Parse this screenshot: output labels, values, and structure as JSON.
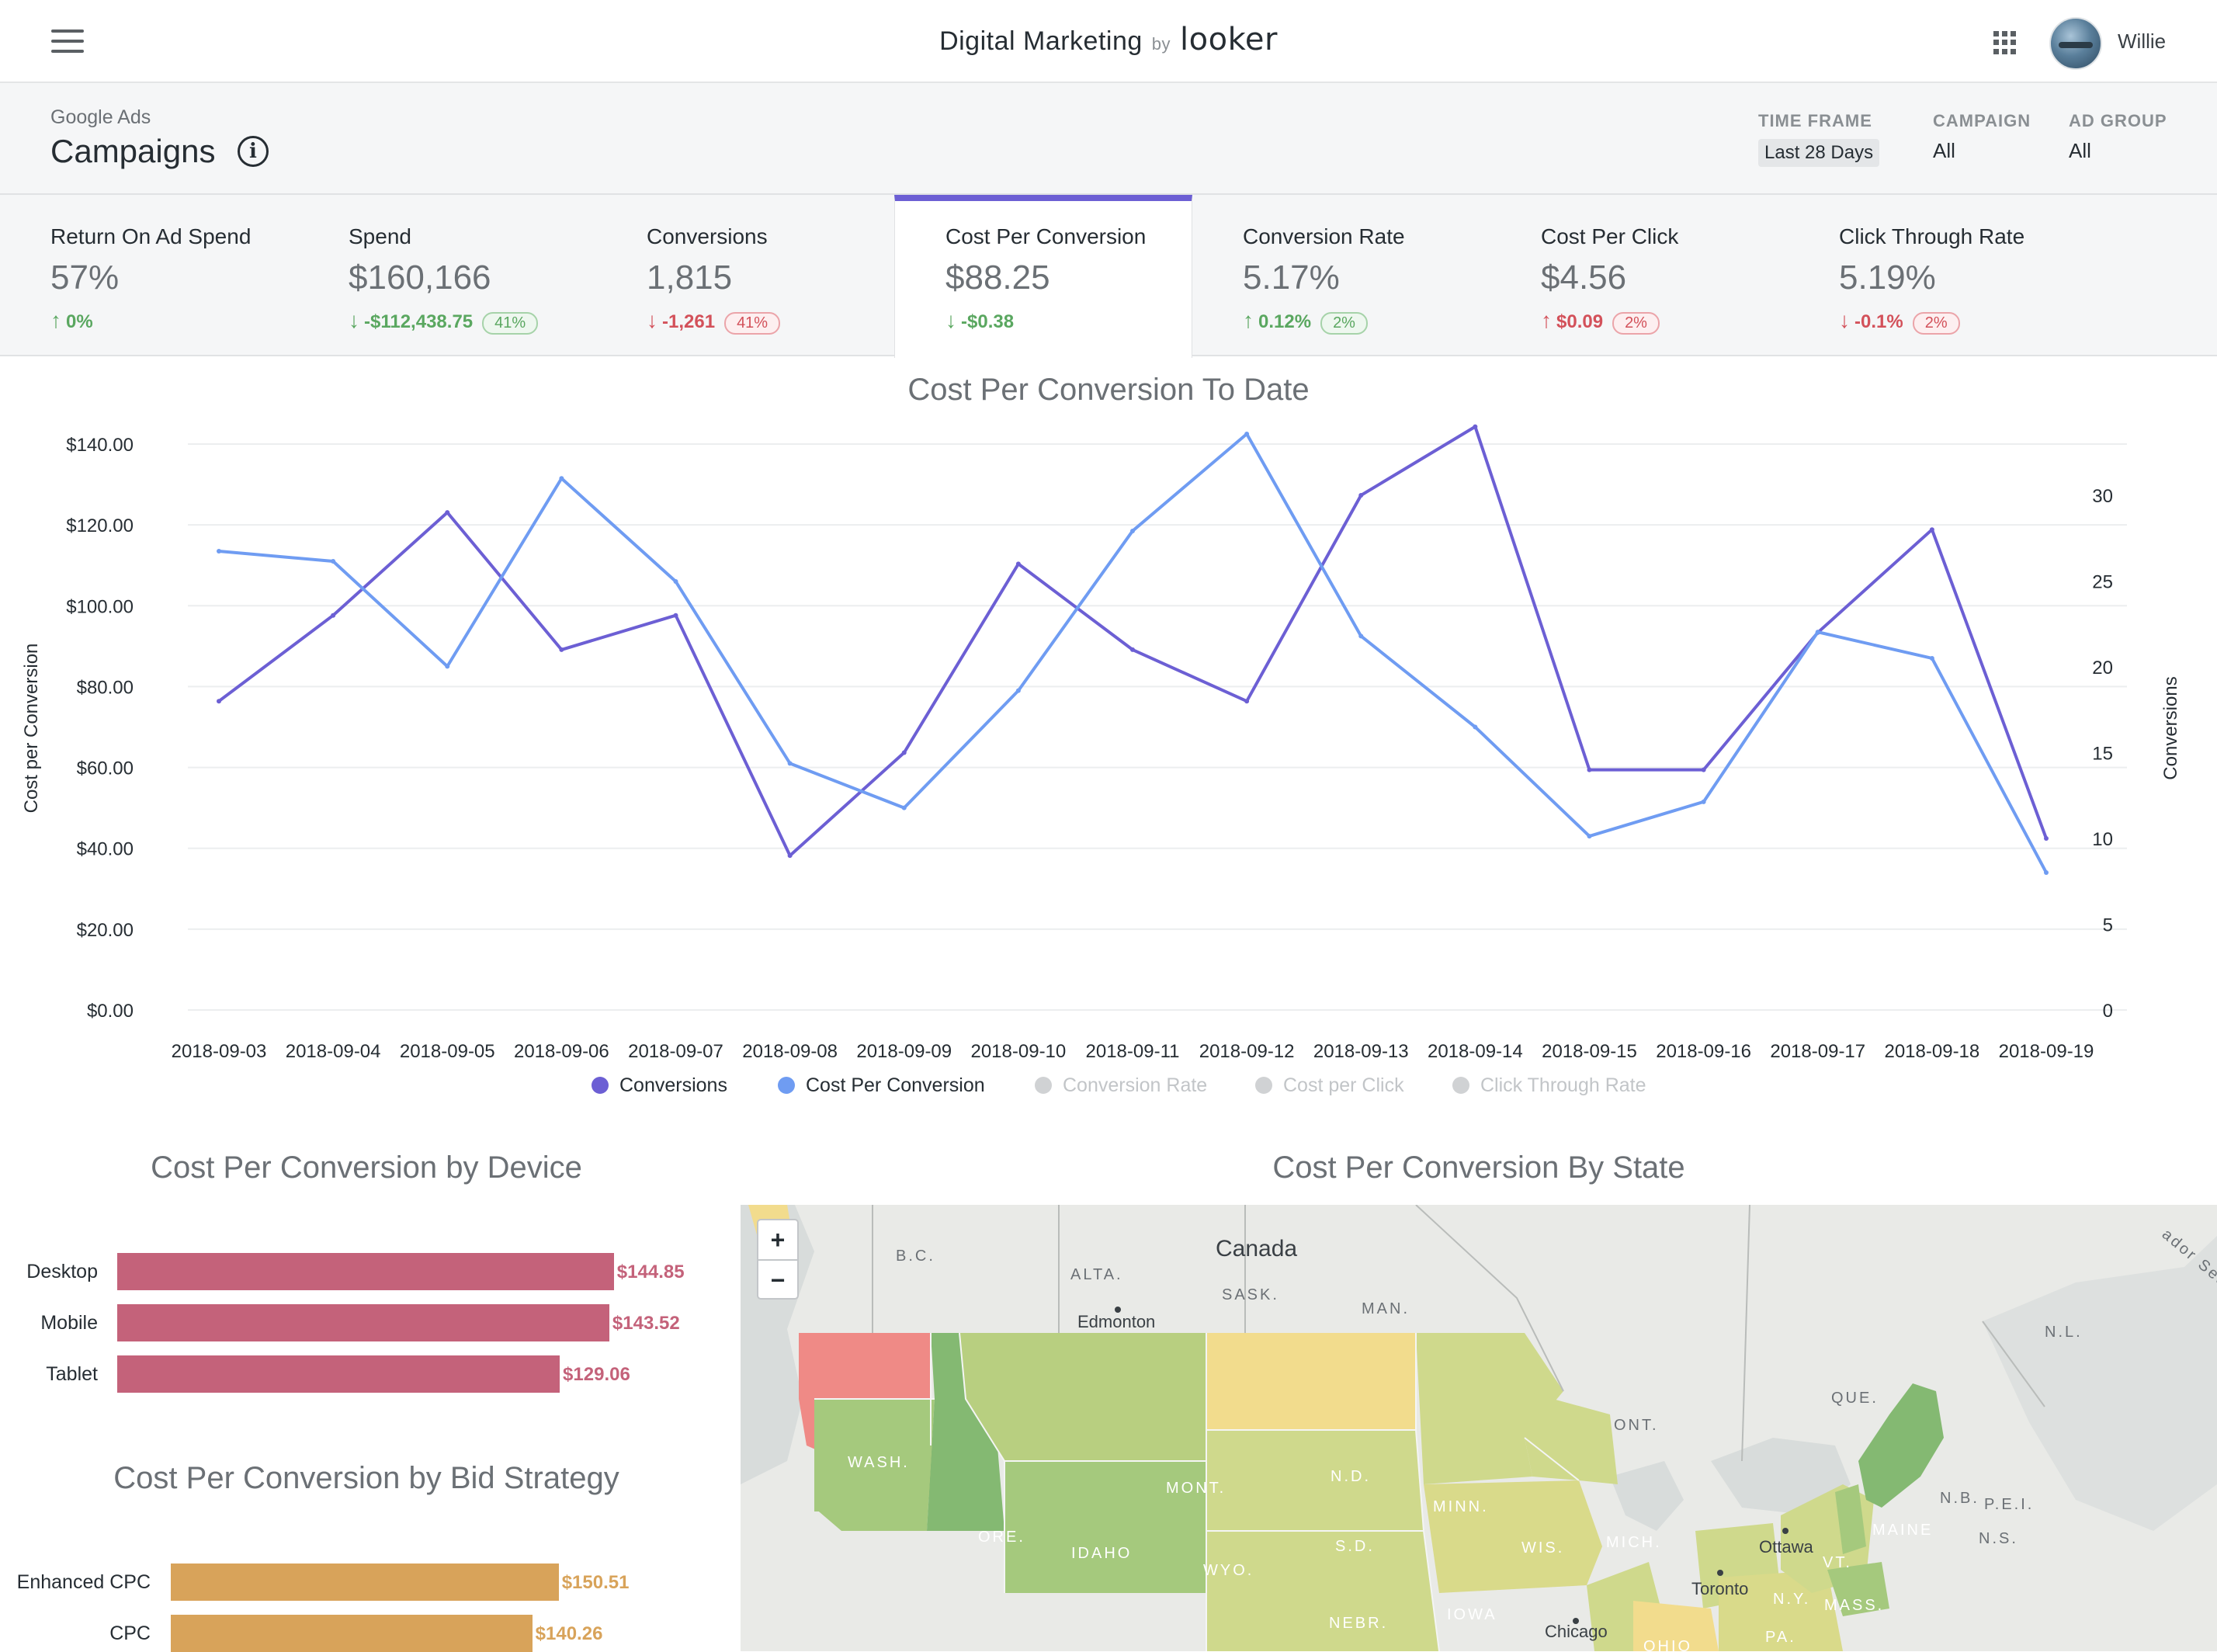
{
  "app": {
    "title": "Digital Marketing",
    "by": "by",
    "logo_text": "looker",
    "user_name": "Willie"
  },
  "header": {
    "subtitle": "Google Ads",
    "title": "Campaigns",
    "info_icon": "i"
  },
  "filters": [
    {
      "label": "TIME FRAME",
      "value": "Last 28 Days"
    },
    {
      "label": "CAMPAIGN",
      "value": "All"
    },
    {
      "label": "AD GROUP",
      "value": "All"
    }
  ],
  "kpis": [
    {
      "name": "Return On Ad Spend",
      "value": "57%",
      "arrow": "↑",
      "delta": "0%",
      "badge": "",
      "tone": "up"
    },
    {
      "name": "Spend",
      "value": "$160,166",
      "arrow": "↓",
      "delta": "-$112,438.75",
      "badge": "41%",
      "tone": "downgood"
    },
    {
      "name": "Conversions",
      "value": "1,815",
      "arrow": "↓",
      "delta": "-1,261",
      "badge": "41%",
      "tone": "down"
    },
    {
      "name": "Cost Per Conversion",
      "value": "$88.25",
      "arrow": "↓",
      "delta": "-$0.38",
      "badge": "",
      "tone": "downgood",
      "active": true
    },
    {
      "name": "Conversion Rate",
      "value": "5.17%",
      "arrow": "↑",
      "delta": "0.12%",
      "badge": "2%",
      "tone": "up"
    },
    {
      "name": "Cost Per Click",
      "value": "$4.56",
      "arrow": "↑",
      "delta": "$0.09",
      "badge": "2%",
      "tone": "down"
    },
    {
      "name": "Click Through Rate",
      "value": "5.19%",
      "arrow": "↓",
      "delta": "-0.1%",
      "badge": "2%",
      "tone": "down"
    }
  ],
  "chart_data": [
    {
      "type": "line",
      "title": "Cost Per Conversion To Date",
      "ylabel": "Cost per Conversion",
      "y2label": "Conversions",
      "ylim": [
        0,
        140
      ],
      "y2lim": [
        0,
        30
      ],
      "y_ticks": [
        "$0.00",
        "$20.00",
        "$40.00",
        "$60.00",
        "$80.00",
        "$100.00",
        "$120.00",
        "$140.00"
      ],
      "y2_ticks": [
        "0",
        "5",
        "10",
        "15",
        "20",
        "25",
        "30"
      ],
      "x": [
        "2018-09-03",
        "2018-09-04",
        "2018-09-05",
        "2018-09-06",
        "2018-09-07",
        "2018-09-08",
        "2018-09-09",
        "2018-09-10",
        "2018-09-11",
        "2018-09-12",
        "2018-09-13",
        "2018-09-14",
        "2018-09-15",
        "2018-09-16",
        "2018-09-17",
        "2018-09-18",
        "2018-09-19"
      ],
      "series": [
        {
          "name": "Conversions",
          "axis": "right",
          "color": "#6c5fd4",
          "values": [
            18,
            23,
            29,
            21,
            23,
            9,
            15,
            26,
            21,
            18,
            30,
            34,
            14,
            14,
            22,
            28,
            10
          ]
        },
        {
          "name": "Cost Per Conversion",
          "axis": "left",
          "color": "#6f9cf2",
          "values": [
            113.5,
            111,
            85,
            131.5,
            106,
            61,
            50,
            79,
            118.5,
            142.5,
            92.5,
            70,
            43,
            51.5,
            93.5,
            87,
            34
          ]
        }
      ],
      "legend": [
        {
          "name": "Conversions",
          "color": "#6c5fd4",
          "active": true
        },
        {
          "name": "Cost Per Conversion",
          "color": "#6f9cf2",
          "active": true
        },
        {
          "name": "Conversion Rate",
          "color": "#d0d2d4",
          "active": false
        },
        {
          "name": "Cost per Click",
          "color": "#d0d2d4",
          "active": false
        },
        {
          "name": "Click Through Rate",
          "color": "#d0d2d4",
          "active": false
        }
      ]
    },
    {
      "type": "bar",
      "title": "Cost Per Conversion by Device",
      "categories": [
        "Desktop",
        "Mobile",
        "Tablet"
      ],
      "values": [
        144.85,
        143.52,
        129.06
      ],
      "labels": [
        "$144.85",
        "$143.52",
        "$129.06"
      ],
      "color": "#c4627a"
    },
    {
      "type": "bar",
      "title": "Cost Per Conversion by Bid Strategy",
      "categories": [
        "Enhanced CPC",
        "CPC"
      ],
      "values": [
        150.51,
        140.26
      ],
      "labels": [
        "$150.51",
        "$140.26"
      ],
      "color": "#d8a35a"
    }
  ],
  "map": {
    "title": "Cost Per Conversion By State",
    "zoom_in": "+",
    "zoom_out": "−",
    "labels": [
      "B.C.",
      "ALTA.",
      "SASK.",
      "MAN.",
      "Canada",
      "Edmonton",
      "ONT.",
      "QUE.",
      "N.L.",
      "N.B.",
      "P.E.I.",
      "N.S.",
      "Ottawa",
      "Toronto",
      "Chicago",
      "WASH.",
      "ORE.",
      "IDAHO",
      "MONT.",
      "WYO.",
      "N.D.",
      "S.D.",
      "NEBR.",
      "MINN.",
      "IOWA",
      "WIS.",
      "MICH.",
      "OHIO",
      "PA.",
      "N.Y.",
      "VT.",
      "MASS.",
      "MAINE",
      "ador Sea"
    ],
    "colors": {
      "hot": "#ef8a86",
      "warm": "#f2dc8d",
      "mid": "#cfd98c",
      "good": "#a5c97d",
      "best": "#84b972",
      "water": "#d8dcdb",
      "land": "#e9eae7"
    }
  }
}
